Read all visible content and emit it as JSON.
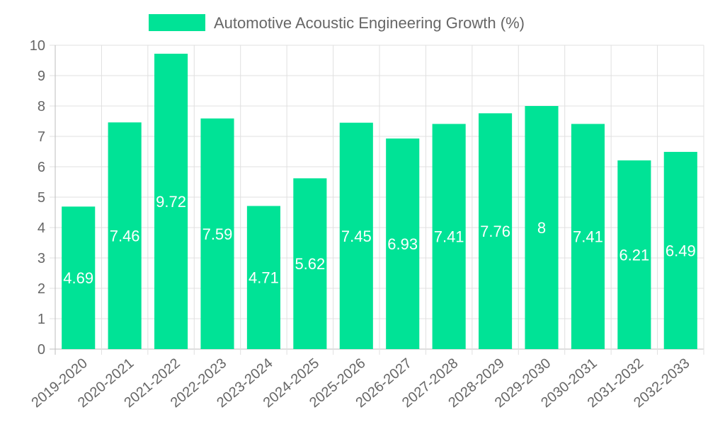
{
  "chart_data": {
    "type": "bar",
    "title": "",
    "xlabel": "",
    "ylabel": "",
    "ylim": [
      0,
      10
    ],
    "yticks": [
      "0",
      "1",
      "2",
      "3",
      "4",
      "5",
      "6",
      "7",
      "8",
      "9",
      "10"
    ],
    "grid": true,
    "legend_position": "top",
    "categories": [
      "2019-2020",
      "2020-2021",
      "2021-2022",
      "2022-2023",
      "2023-2024",
      "2024-2025",
      "2025-2026",
      "2026-2027",
      "2027-2028",
      "2028-2029",
      "2029-2030",
      "2030-2031",
      "2031-2032",
      "2032-2033"
    ],
    "series": [
      {
        "name": "Automotive Acoustic Engineering Growth (%)",
        "color": "#00e396",
        "values": [
          4.69,
          7.46,
          9.72,
          7.59,
          4.71,
          5.62,
          7.45,
          6.93,
          7.41,
          7.76,
          8,
          7.41,
          6.21,
          6.49
        ],
        "value_labels": [
          "4.69",
          "7.46",
          "9.72",
          "7.59",
          "4.71",
          "5.62",
          "7.45",
          "6.93",
          "7.41",
          "7.76",
          "8",
          "7.41",
          "6.21",
          "6.49"
        ]
      }
    ]
  }
}
